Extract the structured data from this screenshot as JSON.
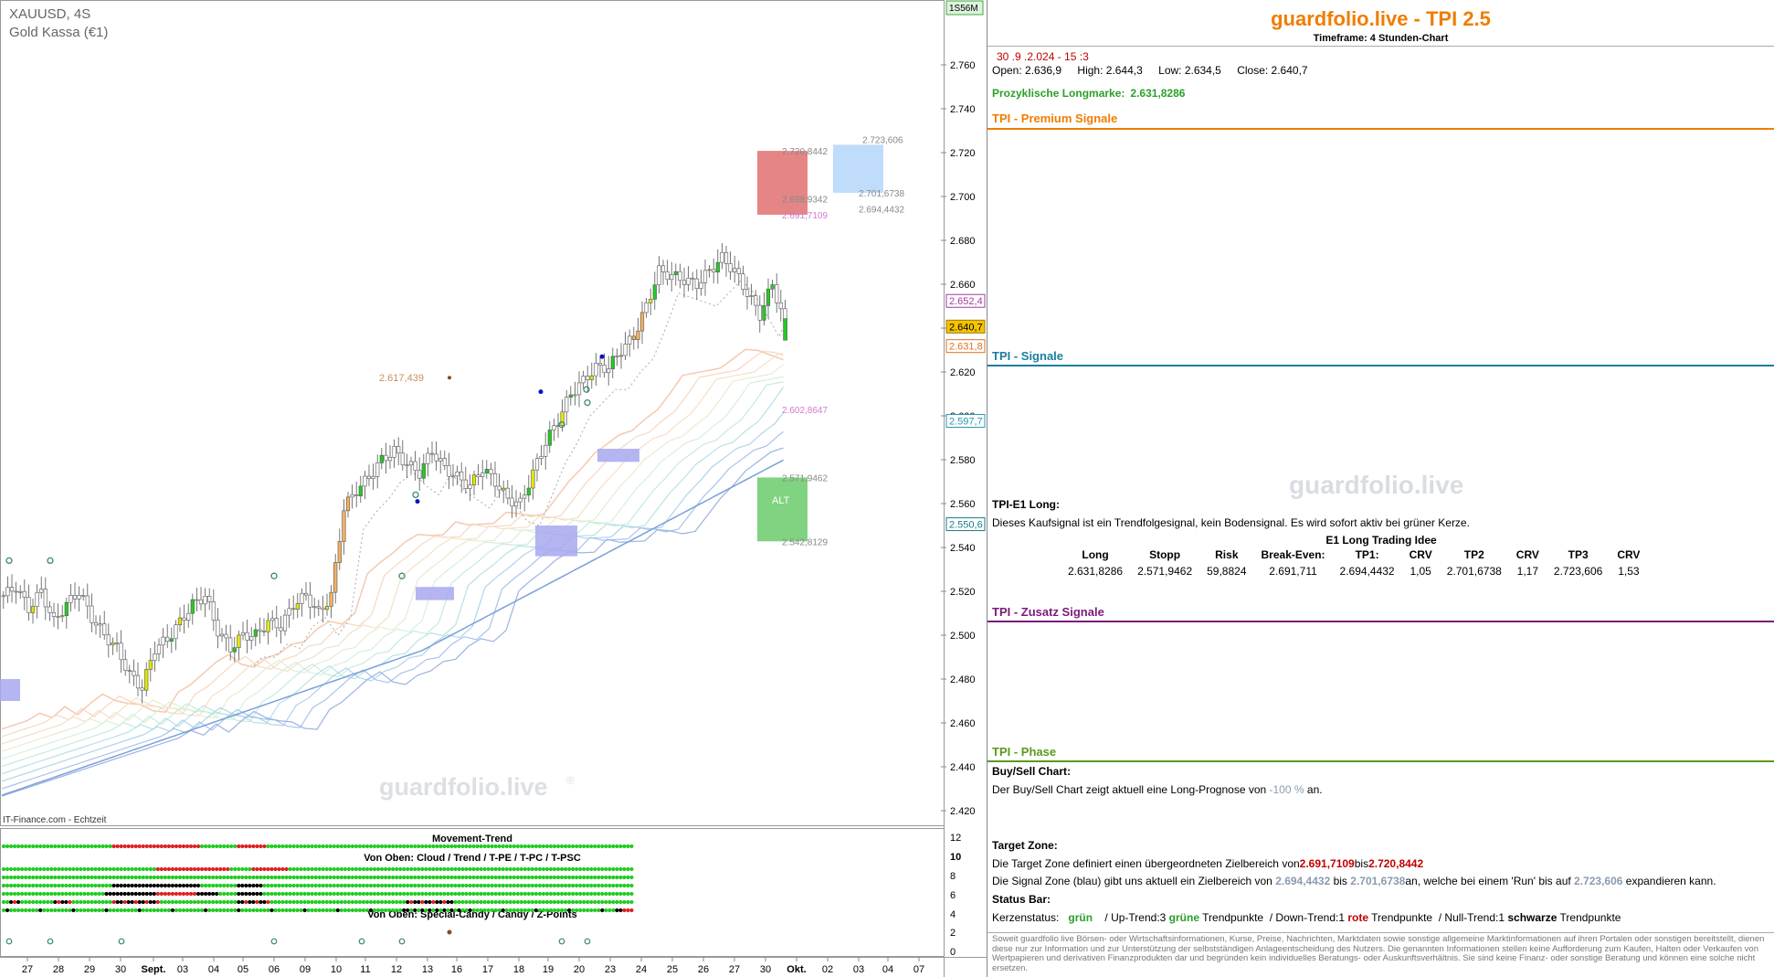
{
  "chart_header": {
    "symbol": "XAUUSD, 4S",
    "name": "Gold Kassa (€1)",
    "source": "IT-Finance.com - Echtzeit",
    "watermark": "guardfolio.live",
    "watermark_symbol": "®",
    "top_badge": "1S56M"
  },
  "indicator_labels": {
    "movement": "Movement-Trend",
    "von_oben_1": "Von Oben: Cloud / Trend / T-PE / T-PC / T-PSC",
    "von_oben_2": "Von Oben: Special-Candy / Candy / Z-Points"
  },
  "chart_data": {
    "type": "candlestick",
    "title": "XAUUSD, 4S",
    "subtitle": "Gold Kassa (€1)",
    "ylim": [
      2410,
      2770
    ],
    "y_ticks": [
      2420,
      2440,
      2460,
      2480,
      2500,
      2520,
      2540,
      2560,
      2580,
      2600,
      2620,
      2640,
      2660,
      2680,
      2700,
      2720,
      2740,
      2760
    ],
    "y_tick_labels": [
      "2.420",
      "2.440",
      "2.460",
      "2.480",
      "2.500",
      "2.520",
      "2.540",
      "2.560",
      "2.580",
      "2.600",
      "2.620",
      "2.640",
      "2.660",
      "2.680",
      "2.700",
      "2.720",
      "2.740",
      "2.760"
    ],
    "x_labels": [
      "27",
      "28",
      "29",
      "30",
      "Sept.",
      "03",
      "04",
      "05",
      "06",
      "09",
      "10",
      "11",
      "12",
      "13",
      "16",
      "17",
      "18",
      "19",
      "20",
      "23",
      "24",
      "25",
      "26",
      "27",
      "30",
      "Okt.",
      "02",
      "03",
      "04",
      "07"
    ],
    "price_path": [
      [
        0,
        2518
      ],
      [
        3,
        2522
      ],
      [
        6,
        2512
      ],
      [
        9,
        2520
      ],
      [
        12,
        2506
      ],
      [
        15,
        2514
      ],
      [
        18,
        2520
      ],
      [
        21,
        2508
      ],
      [
        24,
        2500
      ],
      [
        27,
        2494
      ],
      [
        30,
        2482
      ],
      [
        33,
        2476
      ],
      [
        36,
        2494
      ],
      [
        39,
        2498
      ],
      [
        42,
        2506
      ],
      [
        45,
        2514
      ],
      [
        48,
        2518
      ],
      [
        51,
        2502
      ],
      [
        54,
        2494
      ],
      [
        57,
        2500
      ],
      [
        60,
        2500
      ],
      [
        63,
        2506
      ],
      [
        66,
        2504
      ],
      [
        69,
        2514
      ],
      [
        72,
        2518
      ],
      [
        75,
        2510
      ],
      [
        78,
        2518
      ],
      [
        81,
        2558
      ],
      [
        84,
        2566
      ],
      [
        87,
        2572
      ],
      [
        90,
        2580
      ],
      [
        93,
        2584
      ],
      [
        96,
        2578
      ],
      [
        99,
        2574
      ],
      [
        102,
        2584
      ],
      [
        105,
        2576
      ],
      [
        108,
        2572
      ],
      [
        111,
        2568
      ],
      [
        114,
        2576
      ],
      [
        117,
        2570
      ],
      [
        120,
        2562
      ],
      [
        123,
        2560
      ],
      [
        126,
        2574
      ],
      [
        129,
        2588
      ],
      [
        132,
        2598
      ],
      [
        135,
        2610
      ],
      [
        138,
        2616
      ],
      [
        141,
        2622
      ],
      [
        144,
        2622
      ],
      [
        147,
        2630
      ],
      [
        150,
        2636
      ],
      [
        153,
        2650
      ],
      [
        156,
        2666
      ],
      [
        159,
        2664
      ],
      [
        162,
        2662
      ],
      [
        165,
        2660
      ],
      [
        168,
        2666
      ],
      [
        171,
        2672
      ],
      [
        174,
        2666
      ],
      [
        177,
        2656
      ],
      [
        180,
        2646
      ],
      [
        183,
        2660
      ],
      [
        185,
        2648
      ],
      [
        186,
        2640.7
      ]
    ],
    "series": [
      {
        "name": "Open",
        "values": [
          2636.9
        ]
      },
      {
        "name": "High",
        "values": [
          2644.3
        ]
      },
      {
        "name": "Low",
        "values": [
          2634.5
        ]
      },
      {
        "name": "Close",
        "values": [
          2640.7
        ]
      }
    ],
    "price_labels": {
      "current": "2.640,7",
      "p1": "2.652,4",
      "p2": "2.631,8",
      "p3": "2.597,7",
      "p4": "2.550,6"
    },
    "zones": {
      "target_top": "2.720,8442",
      "target_mid": "2.698,9342",
      "target_low": "2.691,7109",
      "signal_top": "2.723,606",
      "signal_mid": "2.701,6738",
      "signal_low": "2.694,4432",
      "alt_top": "2.571,9462",
      "alt_bottom": "2.542,8129",
      "alt_label": "ALT",
      "mid_level": "2.602,8647",
      "marker": "2.617,439"
    },
    "indicator_y_ticks": [
      "12",
      "10",
      "8",
      "6",
      "4",
      "2",
      "0"
    ]
  },
  "panel": {
    "title": "guardfolio.live - TPI 2.5",
    "timeframe": "Timeframe: 4 Stunden-Chart",
    "date": "30 .9 .2.024  - 15 :3",
    "open": "Open:  2.636,9",
    "high": "High:  2.644,3",
    "low": "Low:  2.634,5",
    "close": "Close:  2.640,7",
    "mark_label": "Prozyklische Longmarke:",
    "mark_value": "2.631,8286",
    "sec_premium": "TPI - Premium Signale",
    "sec_signale": "TPI - Signale",
    "sec_zusatz": "TPI - Zusatz Signale",
    "sec_phase": "TPI - Phase",
    "watermark": "guardfolio.live",
    "e1_head": "TPI-E1 Long:",
    "e1_text": "Dieses Kaufsignal ist ein Trendfolgesignal, kein Bodensignal. Es wird sofort aktiv bei grüner Kerze.",
    "e1_idea": "E1 Long Trading Idee",
    "e1_cols": [
      "Long",
      "Stopp",
      "Risk",
      "Break-Even:",
      "TP1:",
      "CRV",
      "TP2",
      "CRV",
      "TP3",
      "CRV"
    ],
    "e1_vals": [
      "2.631,8286",
      "2.571,9462",
      "59,8824",
      "2.691,711",
      "2.694,4432",
      "1,05",
      "2.701,6738",
      "1,17",
      "2.723,606",
      "1,53"
    ],
    "bs_head": "Buy/Sell Chart:",
    "bs_pre": "Der Buy/Sell Chart zeigt aktuell eine Long-Prognose von",
    "bs_val": "-100 %",
    "bs_post": "an.",
    "tz_head": "Target Zone:",
    "tz_pre": "Die Target Zone definiert einen übergeordneten Zielbereich von",
    "tz_v1": "2.691,7109",
    "tz_mid": "bis",
    "tz_v2": "2.720,8442",
    "sz_pre": "Die Signal Zone (blau) gibt uns aktuell ein Zielbereich von",
    "sz_v1": "2.694,4432",
    "sz_mid": "bis",
    "sz_v2": "2.701,6738",
    "sz_post": "an, welche bei einem 'Run' bis auf",
    "sz_v3": "2.723,606",
    "sz_end": "expandieren kann.",
    "sb_head": "Status Bar:",
    "sb_k": "Kerzenstatus:",
    "sb_k_val": "grün",
    "sb_up": "/ Up-Trend:3",
    "sb_up_c": "grüne",
    "sb_up_t": "Trendpunkte",
    "sb_down": "/ Down-Trend:1",
    "sb_down_c": "rote",
    "sb_down_t": "Trendpunkte",
    "sb_null": "/ Null-Trend:1",
    "sb_null_c": "schwarze",
    "sb_null_t": "Trendpunkte",
    "disclaimer": "Soweit guardfolio live Börsen- oder Wirtschaftsinformationen, Kurse, Preise, Nachrichten, Marktdaten sowie sonstige allgemeine Marktinformationen auf ihren Portalen oder sonstigen bereitstellt, dienen diese nur zur Information und zur Unterstützung der selbstständigen Anlageentscheidung des Nutzers. Die genannten Informationen stellen keine Aufforderung zum Kaufen, Halten oder Verkaufen von Wertpapieren und derivativen Finanzprodukten dar und begründen kein individuelles Beratungs- oder Auskunftsverhältnis. Sie sind keine Finanz- oder sonstige Beratung und können eine solche nicht ersetzen."
  },
  "colors": {
    "orange": "#f07d00",
    "teal": "#1a7fa0",
    "purple": "#7a1a7a",
    "green": "#5a9a1a",
    "bull": "#22cc22",
    "bear": "#dd2222",
    "neutral": "#000000"
  }
}
